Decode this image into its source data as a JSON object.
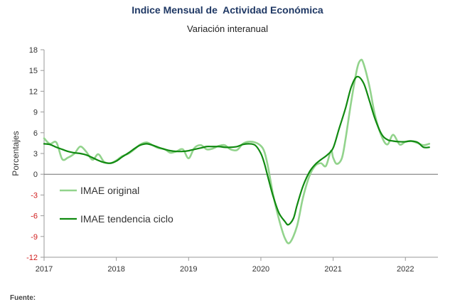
{
  "chart_data": {
    "type": "line",
    "title": "Indice Mensual de  Actividad Económica",
    "subtitle": "Variación interanual",
    "ylabel": "Porcentajes",
    "xlabel": "",
    "ylim": [
      -12,
      18
    ],
    "yticks": [
      18,
      15,
      12,
      9,
      6,
      3,
      0,
      -3,
      -6,
      -9,
      -12
    ],
    "xlim": [
      2017.0,
      2022.45
    ],
    "xticks": [
      {
        "value": 2017,
        "label": "2017"
      },
      {
        "value": 2018,
        "label": "2018"
      },
      {
        "value": 2019,
        "label": "2019"
      },
      {
        "value": 2020,
        "label": "2020"
      },
      {
        "value": 2021,
        "label": "2021"
      },
      {
        "value": 2022,
        "label": "2022"
      }
    ],
    "grid": false,
    "legend_position": "bottom-left inside plot",
    "series": [
      {
        "name": "IMAE original",
        "color": "#92d38c",
        "points": [
          [
            2017.0,
            5.2
          ],
          [
            2017.08,
            4.4
          ],
          [
            2017.17,
            4.6
          ],
          [
            2017.25,
            2.2
          ],
          [
            2017.33,
            2.4
          ],
          [
            2017.42,
            3.0
          ],
          [
            2017.5,
            4.0
          ],
          [
            2017.58,
            3.3
          ],
          [
            2017.67,
            2.1
          ],
          [
            2017.75,
            2.9
          ],
          [
            2017.83,
            1.8
          ],
          [
            2017.92,
            1.6
          ],
          [
            2018.0,
            2.0
          ],
          [
            2018.08,
            2.6
          ],
          [
            2018.17,
            3.0
          ],
          [
            2018.25,
            3.6
          ],
          [
            2018.33,
            4.3
          ],
          [
            2018.42,
            4.6
          ],
          [
            2018.5,
            4.2
          ],
          [
            2018.58,
            3.8
          ],
          [
            2018.67,
            3.6
          ],
          [
            2018.75,
            3.1
          ],
          [
            2018.83,
            3.3
          ],
          [
            2018.92,
            3.6
          ],
          [
            2019.0,
            2.3
          ],
          [
            2019.08,
            3.8
          ],
          [
            2019.17,
            4.2
          ],
          [
            2019.25,
            3.6
          ],
          [
            2019.33,
            3.7
          ],
          [
            2019.42,
            4.1
          ],
          [
            2019.5,
            4.2
          ],
          [
            2019.58,
            3.6
          ],
          [
            2019.67,
            3.5
          ],
          [
            2019.75,
            4.4
          ],
          [
            2019.83,
            4.7
          ],
          [
            2019.92,
            4.6
          ],
          [
            2020.0,
            4.1
          ],
          [
            2020.05,
            3.2
          ],
          [
            2020.1,
            1.0
          ],
          [
            2020.17,
            -3.0
          ],
          [
            2020.25,
            -6.5
          ],
          [
            2020.33,
            -9.2
          ],
          [
            2020.4,
            -9.9
          ],
          [
            2020.5,
            -7.5
          ],
          [
            2020.58,
            -3.5
          ],
          [
            2020.67,
            -0.3
          ],
          [
            2020.75,
            1.2
          ],
          [
            2020.83,
            1.6
          ],
          [
            2020.9,
            1.2
          ],
          [
            2020.97,
            3.4
          ],
          [
            2021.0,
            2.4
          ],
          [
            2021.05,
            1.5
          ],
          [
            2021.12,
            2.3
          ],
          [
            2021.17,
            5.0
          ],
          [
            2021.25,
            10.5
          ],
          [
            2021.33,
            15.2
          ],
          [
            2021.38,
            16.5
          ],
          [
            2021.42,
            16.0
          ],
          [
            2021.5,
            12.8
          ],
          [
            2021.58,
            8.5
          ],
          [
            2021.67,
            5.5
          ],
          [
            2021.75,
            4.3
          ],
          [
            2021.83,
            5.7
          ],
          [
            2021.92,
            4.3
          ],
          [
            2022.0,
            4.7
          ],
          [
            2022.08,
            4.8
          ],
          [
            2022.17,
            4.5
          ],
          [
            2022.25,
            4.2
          ],
          [
            2022.33,
            4.4
          ]
        ]
      },
      {
        "name": "IMAE tendencia ciclo",
        "color": "#118a11",
        "points": [
          [
            2017.0,
            4.4
          ],
          [
            2017.08,
            4.3
          ],
          [
            2017.17,
            3.9
          ],
          [
            2017.25,
            3.6
          ],
          [
            2017.33,
            3.3
          ],
          [
            2017.42,
            3.1
          ],
          [
            2017.5,
            3.0
          ],
          [
            2017.58,
            2.8
          ],
          [
            2017.67,
            2.4
          ],
          [
            2017.75,
            2.0
          ],
          [
            2017.83,
            1.7
          ],
          [
            2017.92,
            1.6
          ],
          [
            2018.0,
            1.9
          ],
          [
            2018.08,
            2.5
          ],
          [
            2018.17,
            3.1
          ],
          [
            2018.25,
            3.7
          ],
          [
            2018.33,
            4.2
          ],
          [
            2018.42,
            4.4
          ],
          [
            2018.5,
            4.2
          ],
          [
            2018.58,
            3.9
          ],
          [
            2018.67,
            3.6
          ],
          [
            2018.75,
            3.4
          ],
          [
            2018.83,
            3.3
          ],
          [
            2018.92,
            3.3
          ],
          [
            2019.0,
            3.4
          ],
          [
            2019.08,
            3.6
          ],
          [
            2019.17,
            3.8
          ],
          [
            2019.25,
            4.0
          ],
          [
            2019.33,
            4.0
          ],
          [
            2019.42,
            4.0
          ],
          [
            2019.5,
            3.9
          ],
          [
            2019.58,
            3.9
          ],
          [
            2019.67,
            4.0
          ],
          [
            2019.75,
            4.3
          ],
          [
            2019.83,
            4.4
          ],
          [
            2019.92,
            4.2
          ],
          [
            2020.0,
            3.0
          ],
          [
            2020.05,
            1.5
          ],
          [
            2020.1,
            -0.5
          ],
          [
            2020.17,
            -3.2
          ],
          [
            2020.25,
            -5.6
          ],
          [
            2020.33,
            -6.8
          ],
          [
            2020.38,
            -7.3
          ],
          [
            2020.45,
            -6.4
          ],
          [
            2020.5,
            -4.5
          ],
          [
            2020.58,
            -1.8
          ],
          [
            2020.67,
            0.3
          ],
          [
            2020.75,
            1.4
          ],
          [
            2020.83,
            2.1
          ],
          [
            2020.92,
            2.8
          ],
          [
            2021.0,
            3.8
          ],
          [
            2021.08,
            6.5
          ],
          [
            2021.17,
            9.5
          ],
          [
            2021.25,
            12.6
          ],
          [
            2021.33,
            14.1
          ],
          [
            2021.42,
            13.2
          ],
          [
            2021.5,
            10.7
          ],
          [
            2021.58,
            8.0
          ],
          [
            2021.67,
            5.8
          ],
          [
            2021.75,
            5.0
          ],
          [
            2021.83,
            4.8
          ],
          [
            2021.92,
            4.7
          ],
          [
            2022.0,
            4.7
          ],
          [
            2022.08,
            4.8
          ],
          [
            2022.17,
            4.6
          ],
          [
            2022.25,
            3.9
          ],
          [
            2022.33,
            3.9
          ]
        ]
      }
    ]
  }
}
